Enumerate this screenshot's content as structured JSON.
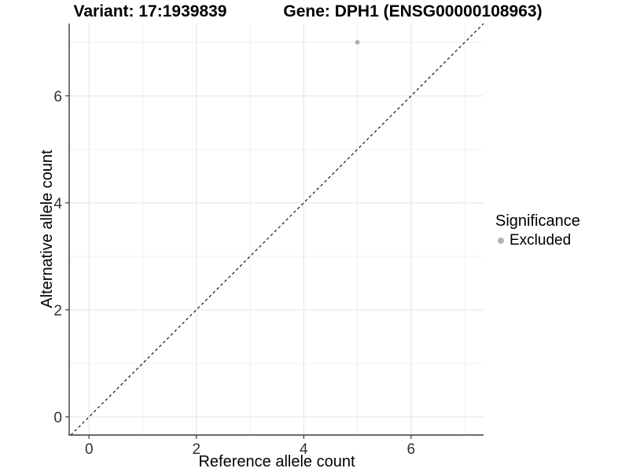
{
  "chart_data": {
    "type": "scatter",
    "titles": {
      "left": "Variant: 17:1939839",
      "right": "Gene: DPH1 (ENSG00000108963)"
    },
    "xlabel": "Reference allele count",
    "ylabel": "Alternative allele count",
    "xlim": [
      -0.37,
      7.35
    ],
    "ylim": [
      -0.34,
      7.35
    ],
    "x_ticks": [
      0,
      2,
      4,
      6
    ],
    "y_ticks": [
      0,
      2,
      4,
      6
    ],
    "x_minor": [
      1,
      3,
      5,
      7
    ],
    "y_minor": [
      1,
      3,
      5,
      7
    ],
    "grid": "on",
    "identity_line": {
      "slope": 1,
      "intercept": 0,
      "style": "dashed",
      "color": "#000000"
    },
    "series": [
      {
        "name": "Excluded",
        "color": "#b3b3b3",
        "points": [
          {
            "x": 5,
            "y": 7
          }
        ]
      }
    ],
    "legend": {
      "title": "Significance",
      "position": "right",
      "items": [
        {
          "label": "Excluded",
          "color": "#b3b3b3",
          "marker": "circle"
        }
      ]
    }
  },
  "colors": {
    "background": "#ffffff",
    "grid_major": "#e3e3e3",
    "grid_minor": "#f0f0f0",
    "axis_line": "#3a3a3a",
    "tick_text": "#333333",
    "point": "#b3b3b3",
    "identity_line": "#000000"
  }
}
